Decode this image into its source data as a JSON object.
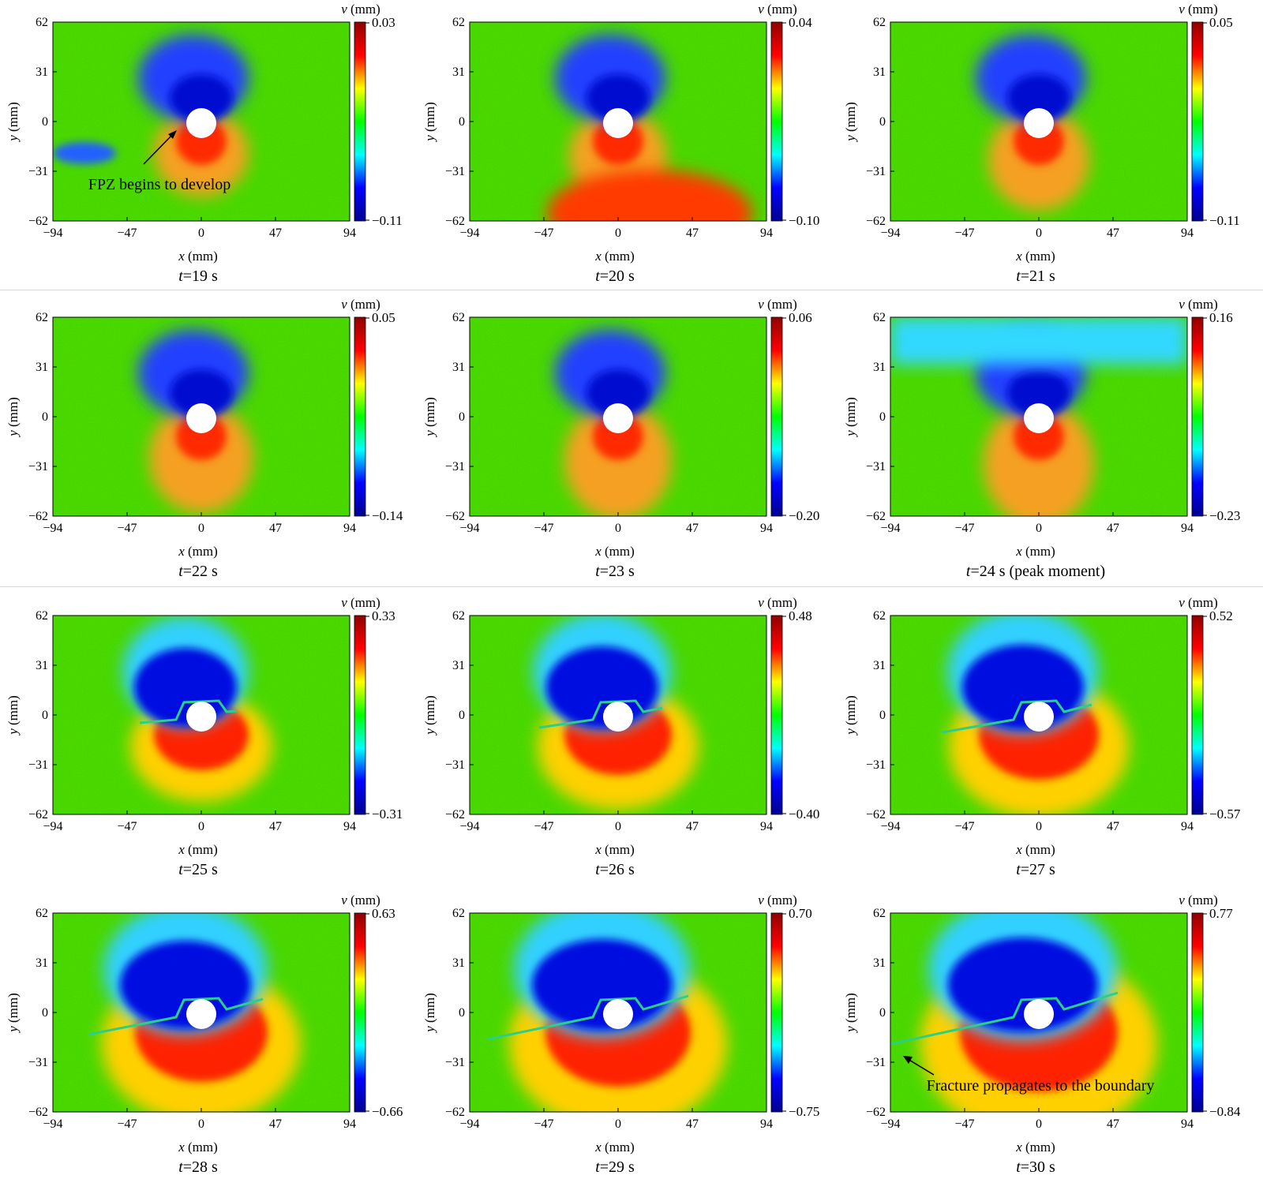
{
  "figure": {
    "x_label_var": "x",
    "y_label_var": "y",
    "unit_label": "(mm)",
    "cbar_var": "v",
    "time_prefix": "t",
    "time_suffix": " s"
  },
  "colors": {
    "colormap": [
      "#00008f",
      "#0000ff",
      "#00ffff",
      "#00ff00",
      "#ffff00",
      "#ff0000",
      "#8f0000"
    ],
    "hole": "#ffffff",
    "frame": "#000000"
  },
  "chart_data": [
    {
      "type": "heatmap",
      "time": "19",
      "title": "t=19 s",
      "xlabel": "x (mm)",
      "ylabel": "y (mm)",
      "cbar_label": "v (mm)",
      "x_ticks": [
        "−94",
        "−47",
        "0",
        "47",
        "94"
      ],
      "y_ticks": [
        "62",
        "31",
        "0",
        "−31",
        "−62"
      ],
      "xlim": [
        -94,
        94
      ],
      "ylim": [
        -62,
        62
      ],
      "cbar_range": [
        -0.11,
        0.03
      ],
      "cbar_max_label": "0.03",
      "cbar_min_label": "−0.11",
      "annotation": "FPZ begins to develop"
    },
    {
      "type": "heatmap",
      "time": "20",
      "title": "t=20 s",
      "xlabel": "x (mm)",
      "ylabel": "y (mm)",
      "cbar_label": "v (mm)",
      "x_ticks": [
        "−94",
        "−47",
        "0",
        "47",
        "94"
      ],
      "y_ticks": [
        "62",
        "31",
        "0",
        "−31",
        "−62"
      ],
      "xlim": [
        -94,
        94
      ],
      "ylim": [
        -62,
        62
      ],
      "cbar_range": [
        -0.1,
        0.04
      ],
      "cbar_max_label": "0.04",
      "cbar_min_label": "−0.10"
    },
    {
      "type": "heatmap",
      "time": "21",
      "title": "t=21 s",
      "xlabel": "x (mm)",
      "ylabel": "y (mm)",
      "cbar_label": "v (mm)",
      "x_ticks": [
        "−94",
        "−47",
        "0",
        "47",
        "94"
      ],
      "y_ticks": [
        "62",
        "31",
        "0",
        "−31",
        "−62"
      ],
      "xlim": [
        -94,
        94
      ],
      "ylim": [
        -62,
        62
      ],
      "cbar_range": [
        -0.11,
        0.05
      ],
      "cbar_max_label": "0.05",
      "cbar_min_label": "−0.11"
    },
    {
      "type": "heatmap",
      "time": "22",
      "title": "t=22 s",
      "xlabel": "x (mm)",
      "ylabel": "y (mm)",
      "cbar_label": "v (mm)",
      "x_ticks": [
        "−94",
        "−47",
        "0",
        "47",
        "94"
      ],
      "y_ticks": [
        "62",
        "31",
        "0",
        "−31",
        "−62"
      ],
      "xlim": [
        -94,
        94
      ],
      "ylim": [
        -62,
        62
      ],
      "cbar_range": [
        -0.14,
        0.05
      ],
      "cbar_max_label": "0.05",
      "cbar_min_label": "−0.14"
    },
    {
      "type": "heatmap",
      "time": "23",
      "title": "t=23 s",
      "xlabel": "x (mm)",
      "ylabel": "y (mm)",
      "cbar_label": "v (mm)",
      "x_ticks": [
        "−94",
        "−47",
        "0",
        "47",
        "94"
      ],
      "y_ticks": [
        "62",
        "31",
        "0",
        "−31",
        "−62"
      ],
      "xlim": [
        -94,
        94
      ],
      "ylim": [
        -62,
        62
      ],
      "cbar_range": [
        -0.2,
        0.06
      ],
      "cbar_max_label": "0.06",
      "cbar_min_label": "−0.20"
    },
    {
      "type": "heatmap",
      "time": "24",
      "title": "t=24 s (peak moment)",
      "title_extra": " (peak moment)",
      "xlabel": "x (mm)",
      "ylabel": "y (mm)",
      "cbar_label": "v (mm)",
      "x_ticks": [
        "−94",
        "−47",
        "0",
        "47",
        "94"
      ],
      "y_ticks": [
        "62",
        "31",
        "0",
        "−31",
        "−62"
      ],
      "xlim": [
        -94,
        94
      ],
      "ylim": [
        -62,
        62
      ],
      "cbar_range": [
        -0.23,
        0.16
      ],
      "cbar_max_label": "0.16",
      "cbar_min_label": "−0.23"
    },
    {
      "type": "heatmap",
      "time": "25",
      "title": "t=25 s",
      "xlabel": "x (mm)",
      "ylabel": "y (mm)",
      "cbar_label": "v (mm)",
      "x_ticks": [
        "−94",
        "−47",
        "0",
        "47",
        "94"
      ],
      "y_ticks": [
        "62",
        "31",
        "0",
        "−31",
        "−62"
      ],
      "xlim": [
        -94,
        94
      ],
      "ylim": [
        -62,
        62
      ],
      "cbar_range": [
        -0.31,
        0.33
      ],
      "cbar_max_label": "0.33",
      "cbar_min_label": "−0.31"
    },
    {
      "type": "heatmap",
      "time": "26",
      "title": "t=26 s",
      "xlabel": "x (mm)",
      "ylabel": "y (mm)",
      "cbar_label": "v (mm)",
      "x_ticks": [
        "−94",
        "−47",
        "0",
        "47",
        "94"
      ],
      "y_ticks": [
        "62",
        "31",
        "0",
        "−31",
        "−62"
      ],
      "xlim": [
        -94,
        94
      ],
      "ylim": [
        -62,
        62
      ],
      "cbar_range": [
        -0.4,
        0.48
      ],
      "cbar_max_label": "0.48",
      "cbar_min_label": "−0.40"
    },
    {
      "type": "heatmap",
      "time": "27",
      "title": "t=27 s",
      "xlabel": "x (mm)",
      "ylabel": "y (mm)",
      "cbar_label": "v (mm)",
      "x_ticks": [
        "−94",
        "−47",
        "0",
        "47",
        "94"
      ],
      "y_ticks": [
        "62",
        "31",
        "0",
        "−31",
        "−62"
      ],
      "xlim": [
        -94,
        94
      ],
      "ylim": [
        -62,
        62
      ],
      "cbar_range": [
        -0.57,
        0.52
      ],
      "cbar_max_label": "0.52",
      "cbar_min_label": "−0.57"
    },
    {
      "type": "heatmap",
      "time": "28",
      "title": "t=28 s",
      "xlabel": "x (mm)",
      "ylabel": "y (mm)",
      "cbar_label": "v (mm)",
      "x_ticks": [
        "−94",
        "−47",
        "0",
        "47",
        "94"
      ],
      "y_ticks": [
        "62",
        "31",
        "0",
        "−31",
        "−62"
      ],
      "xlim": [
        -94,
        94
      ],
      "ylim": [
        -62,
        62
      ],
      "cbar_range": [
        -0.66,
        0.63
      ],
      "cbar_max_label": "0.63",
      "cbar_min_label": "−0.66"
    },
    {
      "type": "heatmap",
      "time": "29",
      "title": "t=29 s",
      "xlabel": "x (mm)",
      "ylabel": "y (mm)",
      "cbar_label": "v (mm)",
      "x_ticks": [
        "−94",
        "−47",
        "0",
        "47",
        "94"
      ],
      "y_ticks": [
        "62",
        "31",
        "0",
        "−31",
        "−62"
      ],
      "xlim": [
        -94,
        94
      ],
      "ylim": [
        -62,
        62
      ],
      "cbar_range": [
        -0.75,
        0.7
      ],
      "cbar_max_label": "0.70",
      "cbar_min_label": "−0.75"
    },
    {
      "type": "heatmap",
      "time": "30",
      "title": "t=30 s",
      "xlabel": "x (mm)",
      "ylabel": "y (mm)",
      "cbar_label": "v (mm)",
      "x_ticks": [
        "−94",
        "−47",
        "0",
        "47",
        "94"
      ],
      "y_ticks": [
        "62",
        "31",
        "0",
        "−31",
        "−62"
      ],
      "xlim": [
        -94,
        94
      ],
      "ylim": [
        -62,
        62
      ],
      "cbar_range": [
        -0.84,
        0.77
      ],
      "cbar_max_label": "0.77",
      "cbar_min_label": "−0.84",
      "annotation": "Fracture propagates to the boundary"
    }
  ]
}
